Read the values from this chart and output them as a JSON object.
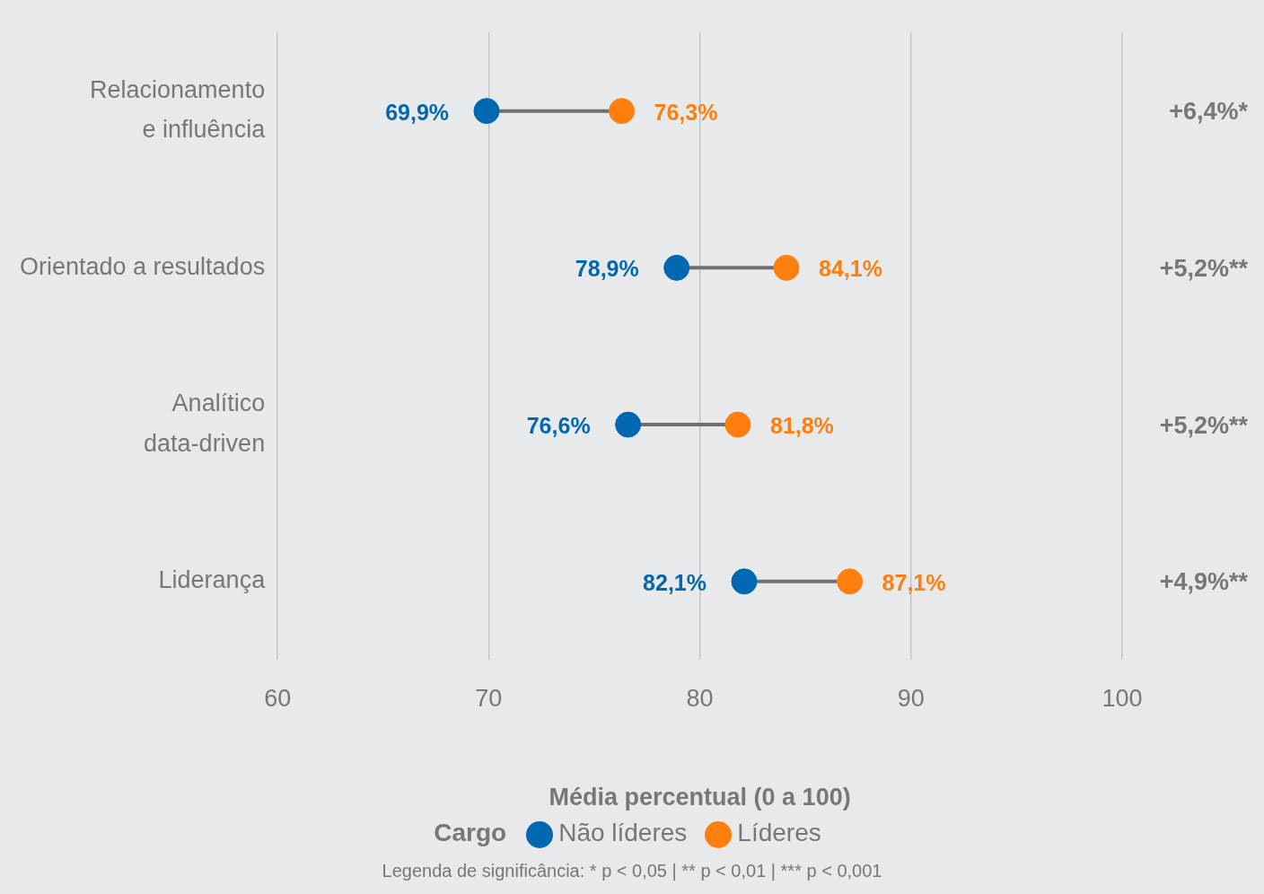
{
  "chart_data": {
    "type": "scatter",
    "orientation": "horizontal",
    "categories": [
      "Relacionamento\ne influência",
      "Orientado a resultados",
      "Analítico\ndata-driven",
      "Liderança"
    ],
    "series": [
      {
        "name": "Não líderes",
        "color": "#0067b1",
        "values": [
          69.9,
          78.9,
          76.6,
          82.1
        ],
        "value_labels": [
          "69,9%",
          "78,9%",
          "76,6%",
          "82,1%"
        ]
      },
      {
        "name": "Líderes",
        "color": "#ff7f0e",
        "values": [
          76.3,
          84.1,
          81.8,
          87.1
        ],
        "value_labels": [
          "76,3%",
          "84,1%",
          "81,8%",
          "87,1%"
        ]
      }
    ],
    "xlabel": "Média percentual (0 a 100)",
    "legend_title": "Cargo",
    "legend": "bottom",
    "xlim": [
      60,
      100
    ],
    "xticks": [
      60,
      70,
      80,
      90,
      100
    ],
    "grid": "x",
    "marker": "circle",
    "annotations": [
      "+6,4%*",
      "+5,2%**",
      "+5,2%**",
      "+4,9%**",
      "Legenda de significância: * p < 0,05  |  ** p < 0,01  |  *** p < 0,001"
    ]
  }
}
